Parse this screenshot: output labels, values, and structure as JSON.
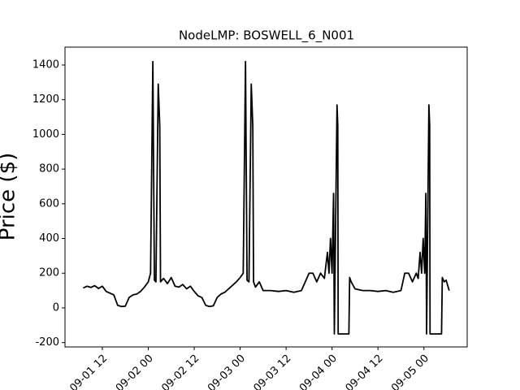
{
  "chart_data": {
    "type": "line",
    "title": "NodeLMP: BOSWELL_6_N001",
    "y_label": "Price ($)",
    "color": "#000000",
    "x": [
      7,
      8,
      9,
      10,
      11,
      12,
      13,
      14,
      15,
      16,
      17,
      18,
      19,
      20,
      21,
      22,
      23,
      24,
      24.6,
      25.2,
      25.6,
      26,
      26.6,
      27,
      27.2,
      28,
      29,
      30,
      31,
      32,
      33,
      34,
      35,
      36,
      37,
      38,
      39,
      40,
      41,
      42,
      43,
      44,
      45,
      46,
      47,
      48,
      48.8,
      49.4,
      49.8,
      50.3,
      50.9,
      51.3,
      51.5,
      52,
      53,
      54,
      56,
      58,
      60,
      62,
      64,
      66,
      67,
      68,
      69,
      70,
      70.8,
      71.2,
      71.6,
      72,
      72.4,
      72.6,
      73.3,
      73.5,
      73.6,
      76.4,
      76.6,
      77,
      78,
      80,
      82,
      84,
      86,
      88,
      90,
      91,
      92,
      93,
      94,
      94.5,
      95,
      95.4,
      95.8,
      96.2,
      96.5,
      96.7,
      97.3,
      97.5,
      97.6,
      100.6,
      100.8,
      101.3,
      101.8,
      102.6
    ],
    "values": [
      115,
      125,
      118,
      128,
      112,
      125,
      95,
      85,
      75,
      15,
      8,
      10,
      60,
      75,
      80,
      95,
      120,
      150,
      200,
      1420,
      160,
      150,
      1290,
      1050,
      150,
      170,
      140,
      175,
      125,
      120,
      135,
      110,
      125,
      95,
      70,
      60,
      15,
      8,
      12,
      60,
      80,
      90,
      110,
      130,
      150,
      175,
      200,
      1420,
      160,
      150,
      1290,
      1050,
      150,
      120,
      150,
      100,
      100,
      95,
      100,
      90,
      100,
      200,
      200,
      150,
      200,
      170,
      320,
      200,
      400,
      200,
      660,
      -150,
      1170,
      1050,
      -150,
      -150,
      175,
      150,
      110,
      100,
      100,
      95,
      100,
      90,
      100,
      200,
      200,
      150,
      200,
      170,
      320,
      200,
      400,
      200,
      660,
      -150,
      1170,
      1050,
      -150,
      -150,
      175,
      150,
      160,
      100
    ],
    "xlim": [
      2.25,
      107.3
    ],
    "xticks": [
      {
        "value": 12,
        "label": "09-01 12"
      },
      {
        "value": 24,
        "label": "09-02 00"
      },
      {
        "value": 36,
        "label": "09-02 12"
      },
      {
        "value": 48,
        "label": "09-03 00"
      },
      {
        "value": 60,
        "label": "09-03 12"
      },
      {
        "value": 72,
        "label": "09-04 00"
      },
      {
        "value": 84,
        "label": "09-04 12"
      },
      {
        "value": 96,
        "label": "09-05 00"
      }
    ],
    "ylim": [
      -225,
      1503
    ],
    "yticks": [
      -200,
      0,
      200,
      400,
      600,
      800,
      1000,
      1200,
      1400
    ]
  }
}
